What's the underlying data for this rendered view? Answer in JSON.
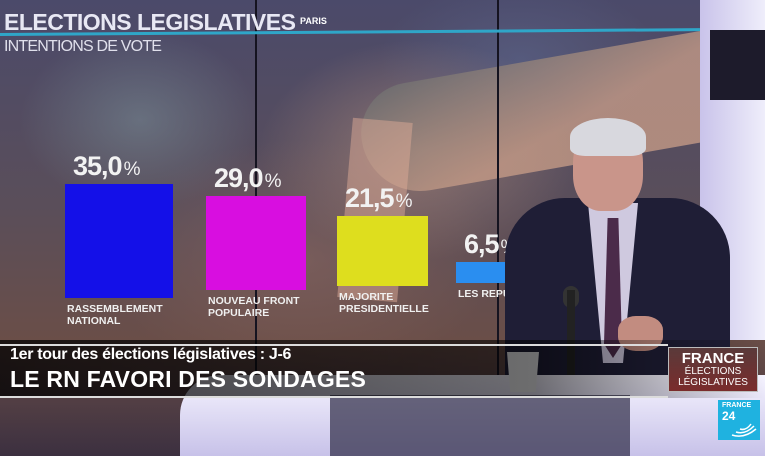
{
  "screen": {
    "title": "ELECTIONS LEGISLATIVES",
    "subtitle": "INTENTIONS DE VOTE",
    "location": "PARIS"
  },
  "chart_data": {
    "type": "bar",
    "title": "ELECTIONS LEGISLATIVES",
    "subtitle": "INTENTIONS DE VOTE",
    "categories": [
      "RASSEMBLEMENT NATIONAL",
      "NOUVEAU FRONT POPULAIRE",
      "MAJORITE PRESIDENTIELLE",
      "LES REPU"
    ],
    "values": [
      35.0,
      29.0,
      21.5,
      6.5
    ],
    "value_labels": [
      "35,0",
      "29,0",
      "21,5",
      "6,5"
    ],
    "unit": "%",
    "colors": [
      "#1410e8",
      "#d80ee0",
      "#dede1e",
      "#2a8ef0"
    ],
    "xlabel": "",
    "ylabel": "",
    "ylim": [
      0,
      40
    ],
    "grid": false
  },
  "lower_third": {
    "kicker": "1er tour des élections législatives : J-6",
    "headline": "LE RN FAVORI DES SONDAGES"
  },
  "show_logo": {
    "line1": "FRANCE",
    "line2": "ÉLECTIONS",
    "line3": "LÉGISLATIVES"
  },
  "channel_logo": {
    "line1": "FRANCE",
    "line2": "24",
    "color": "#1fb2e0"
  }
}
